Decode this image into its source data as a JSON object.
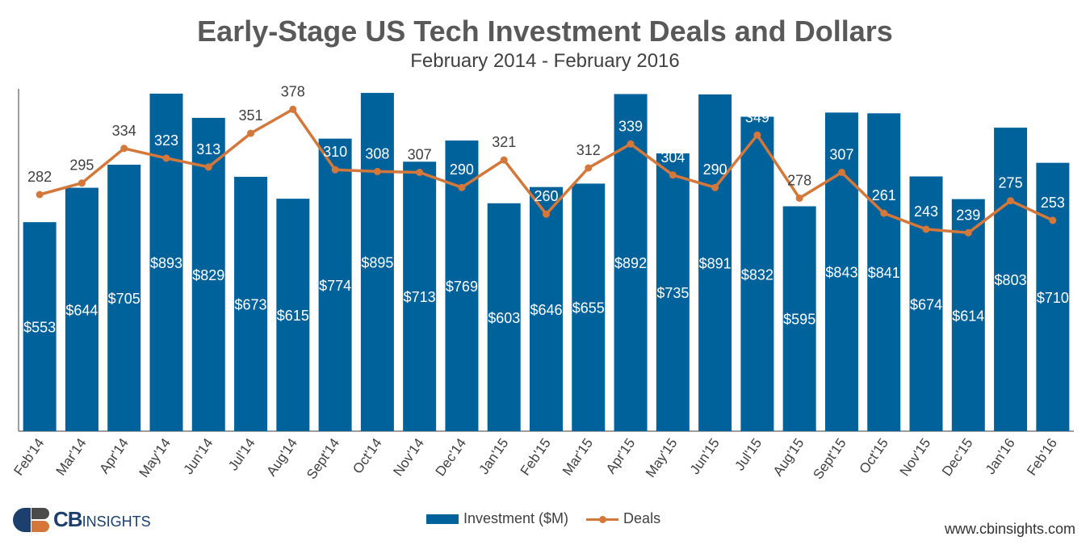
{
  "header": {
    "title": "Early-Stage US Tech Investment Deals and Dollars",
    "subtitle": "February 2014 - February 2016"
  },
  "legend": {
    "investment_label": "Investment ($M)",
    "deals_label": "Deals"
  },
  "footer": {
    "logo_cb": "CB",
    "logo_insights": "INSIGHTS",
    "url": "www.cbinsights.com"
  },
  "colors": {
    "bar": "#00629b",
    "line": "#d4773a",
    "axis": "#7f7f7f"
  },
  "chart_data": {
    "type": "bar",
    "title": "Early-Stage US Tech Investment Deals and Dollars",
    "subtitle": "February 2014 - February 2016",
    "categories": [
      "Feb'14",
      "Mar'14",
      "Apr'14",
      "May'14",
      "Jun'14",
      "Jul'14",
      "Aug'14",
      "Sept'14",
      "Oct'14",
      "Nov'14",
      "Dec'14",
      "Jan'15",
      "Feb'15",
      "Mar'15",
      "Apr'15",
      "May'15",
      "Jun'15",
      "Jul'15",
      "Aug'15",
      "Sept'15",
      "Oct'15",
      "Nov'15",
      "Dec'15",
      "Jan'16",
      "Feb'16"
    ],
    "series": [
      {
        "name": "Investment ($M)",
        "type": "bar",
        "values": [
          553,
          644,
          705,
          893,
          829,
          673,
          615,
          774,
          895,
          713,
          769,
          603,
          646,
          655,
          892,
          735,
          891,
          832,
          595,
          843,
          841,
          674,
          614,
          803,
          710
        ],
        "labels": [
          "$553",
          "$644",
          "$705",
          "$893",
          "$829",
          "$673",
          "$615",
          "$774",
          "$895",
          "$713",
          "$769",
          "$603",
          "$646",
          "$655",
          "$892",
          "$735",
          "$891",
          "$832",
          "$595",
          "$843",
          "$841",
          "$674",
          "$614",
          "$803",
          "$710"
        ]
      },
      {
        "name": "Deals",
        "type": "line",
        "values": [
          282,
          295,
          334,
          323,
          313,
          351,
          378,
          310,
          308,
          307,
          290,
          321,
          260,
          312,
          339,
          304,
          290,
          349,
          278,
          307,
          261,
          243,
          239,
          275,
          253
        ],
        "labels": [
          "282",
          "295",
          "334",
          "323",
          "313",
          "351",
          "378",
          "310",
          "308",
          "307",
          "290",
          "321",
          "260",
          "312",
          "339",
          "304",
          "290",
          "349",
          "278",
          "307",
          "261",
          "243",
          "239",
          "275",
          "253"
        ]
      }
    ],
    "investment_range": [
      0,
      900
    ],
    "deals_range": [
      0,
      400
    ],
    "xlabel": "",
    "ylabel": "",
    "grid": false,
    "legend_position": "bottom-center"
  }
}
